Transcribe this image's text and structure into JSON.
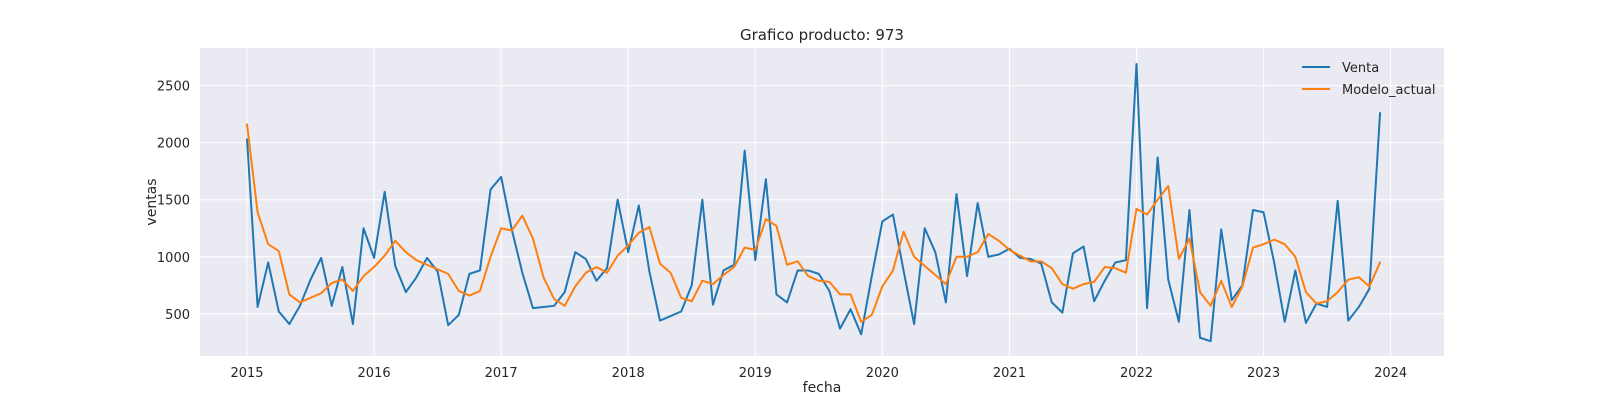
{
  "chart_data": {
    "type": "line",
    "title": "Grafico producto: 973",
    "xlabel": "fecha",
    "ylabel": "ventas",
    "x_start": "2015-01",
    "x_end": "2023-12",
    "xlim": [
      2014.63,
      2024.42
    ],
    "ylim": [
      130,
      2830
    ],
    "xticks": [
      2015,
      2016,
      2017,
      2018,
      2019,
      2020,
      2021,
      2022,
      2023,
      2024
    ],
    "yticks": [
      500,
      1000,
      1500,
      2000,
      2500
    ],
    "grid": true,
    "legend_position": "top-right",
    "series": [
      {
        "name": "Venta",
        "color": "#1f77b4",
        "values": [
          2030,
          560,
          950,
          520,
          410,
          570,
          800,
          990,
          570,
          910,
          410,
          1250,
          990,
          1570,
          920,
          690,
          820,
          990,
          870,
          400,
          490,
          850,
          880,
          1590,
          1700,
          1240,
          860,
          550,
          560,
          570,
          690,
          1040,
          980,
          790,
          900,
          1500,
          1040,
          1450,
          870,
          440,
          480,
          520,
          750,
          1500,
          580,
          880,
          930,
          1930,
          970,
          1680,
          670,
          600,
          880,
          880,
          850,
          700,
          370,
          540,
          320,
          830,
          1310,
          1370,
          880,
          410,
          1250,
          1040,
          600,
          1550,
          830,
          1470,
          1000,
          1020,
          1070,
          990,
          980,
          940,
          600,
          510,
          1030,
          1090,
          610,
          790,
          950,
          970,
          2690,
          550,
          1870,
          800,
          430,
          1410,
          290,
          260,
          1240,
          620,
          750,
          1410,
          1390,
          950,
          430,
          880,
          420,
          590,
          560,
          1490,
          440,
          560,
          720,
          2260
        ]
      },
      {
        "name": "Modelo_actual",
        "color": "#ff7f0e",
        "values": [
          2160,
          1390,
          1110,
          1050,
          670,
          600,
          640,
          680,
          770,
          800,
          700,
          830,
          910,
          1010,
          1140,
          1040,
          970,
          930,
          890,
          850,
          700,
          660,
          700,
          1000,
          1250,
          1230,
          1360,
          1160,
          820,
          630,
          570,
          740,
          860,
          910,
          860,
          1010,
          1100,
          1210,
          1260,
          940,
          860,
          640,
          610,
          790,
          760,
          840,
          910,
          1080,
          1060,
          1330,
          1270,
          930,
          960,
          830,
          790,
          780,
          670,
          670,
          430,
          490,
          740,
          880,
          1220,
          1000,
          920,
          840,
          760,
          1000,
          1000,
          1040,
          1200,
          1140,
          1060,
          1010,
          960,
          960,
          900,
          760,
          720,
          760,
          780,
          910,
          900,
          860,
          1420,
          1370,
          1500,
          1620,
          980,
          1160,
          690,
          570,
          790,
          560,
          740,
          1080,
          1110,
          1150,
          1110,
          1000,
          690,
          590,
          610,
          690,
          800,
          820,
          740,
          950
        ]
      }
    ]
  }
}
